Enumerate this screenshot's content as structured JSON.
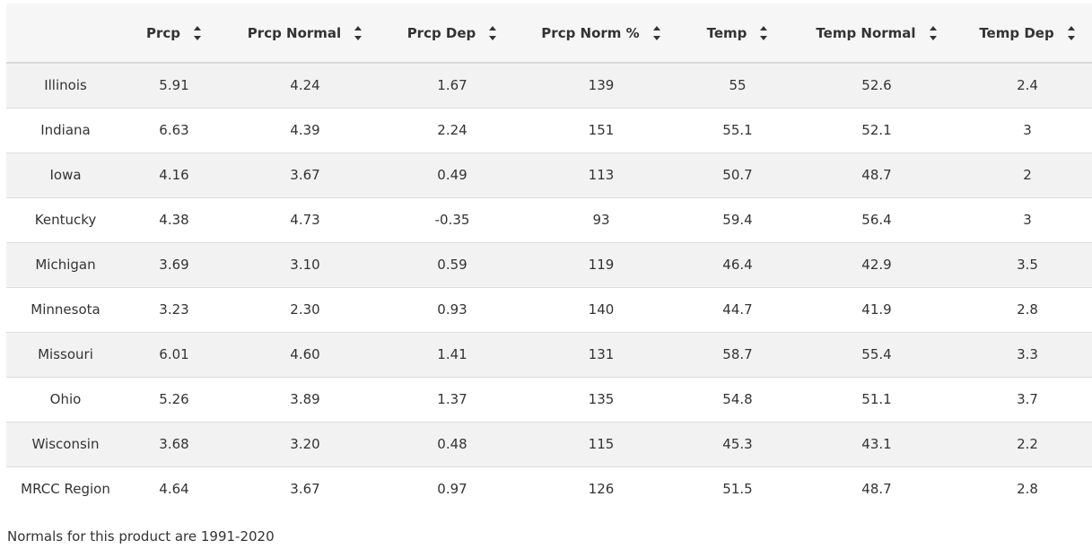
{
  "table": {
    "columns": [
      "",
      "Prcp",
      "Prcp Normal",
      "Prcp Dep",
      "Prcp Norm %",
      "Temp",
      "Temp Normal",
      "Temp Dep"
    ],
    "sortable_columns": [
      false,
      true,
      true,
      true,
      true,
      true,
      true,
      true
    ],
    "rows": [
      [
        "Illinois",
        "5.91",
        "4.24",
        "1.67",
        "139",
        "55",
        "52.6",
        "2.4"
      ],
      [
        "Indiana",
        "6.63",
        "4.39",
        "2.24",
        "151",
        "55.1",
        "52.1",
        "3"
      ],
      [
        "Iowa",
        "4.16",
        "3.67",
        "0.49",
        "113",
        "50.7",
        "48.7",
        "2"
      ],
      [
        "Kentucky",
        "4.38",
        "4.73",
        "-0.35",
        "93",
        "59.4",
        "56.4",
        "3"
      ],
      [
        "Michigan",
        "3.69",
        "3.10",
        "0.59",
        "119",
        "46.4",
        "42.9",
        "3.5"
      ],
      [
        "Minnesota",
        "3.23",
        "2.30",
        "0.93",
        "140",
        "44.7",
        "41.9",
        "2.8"
      ],
      [
        "Missouri",
        "6.01",
        "4.60",
        "1.41",
        "131",
        "58.7",
        "55.4",
        "3.3"
      ],
      [
        "Ohio",
        "5.26",
        "3.89",
        "1.37",
        "135",
        "54.8",
        "51.1",
        "3.7"
      ],
      [
        "Wisconsin",
        "3.68",
        "3.20",
        "0.48",
        "115",
        "45.3",
        "43.1",
        "2.2"
      ],
      [
        "MRCC Region",
        "4.64",
        "3.67",
        "0.97",
        "126",
        "51.5",
        "48.7",
        "2.8"
      ]
    ]
  },
  "footnote": "Normals for this product are 1991-2020",
  "icons": {
    "sort": "sort-both-icon"
  },
  "colors": {
    "header_bg": "#f6f6f6",
    "stripe_bg": "#f2f2f2",
    "text": "#333333",
    "border": "#dddddd"
  }
}
